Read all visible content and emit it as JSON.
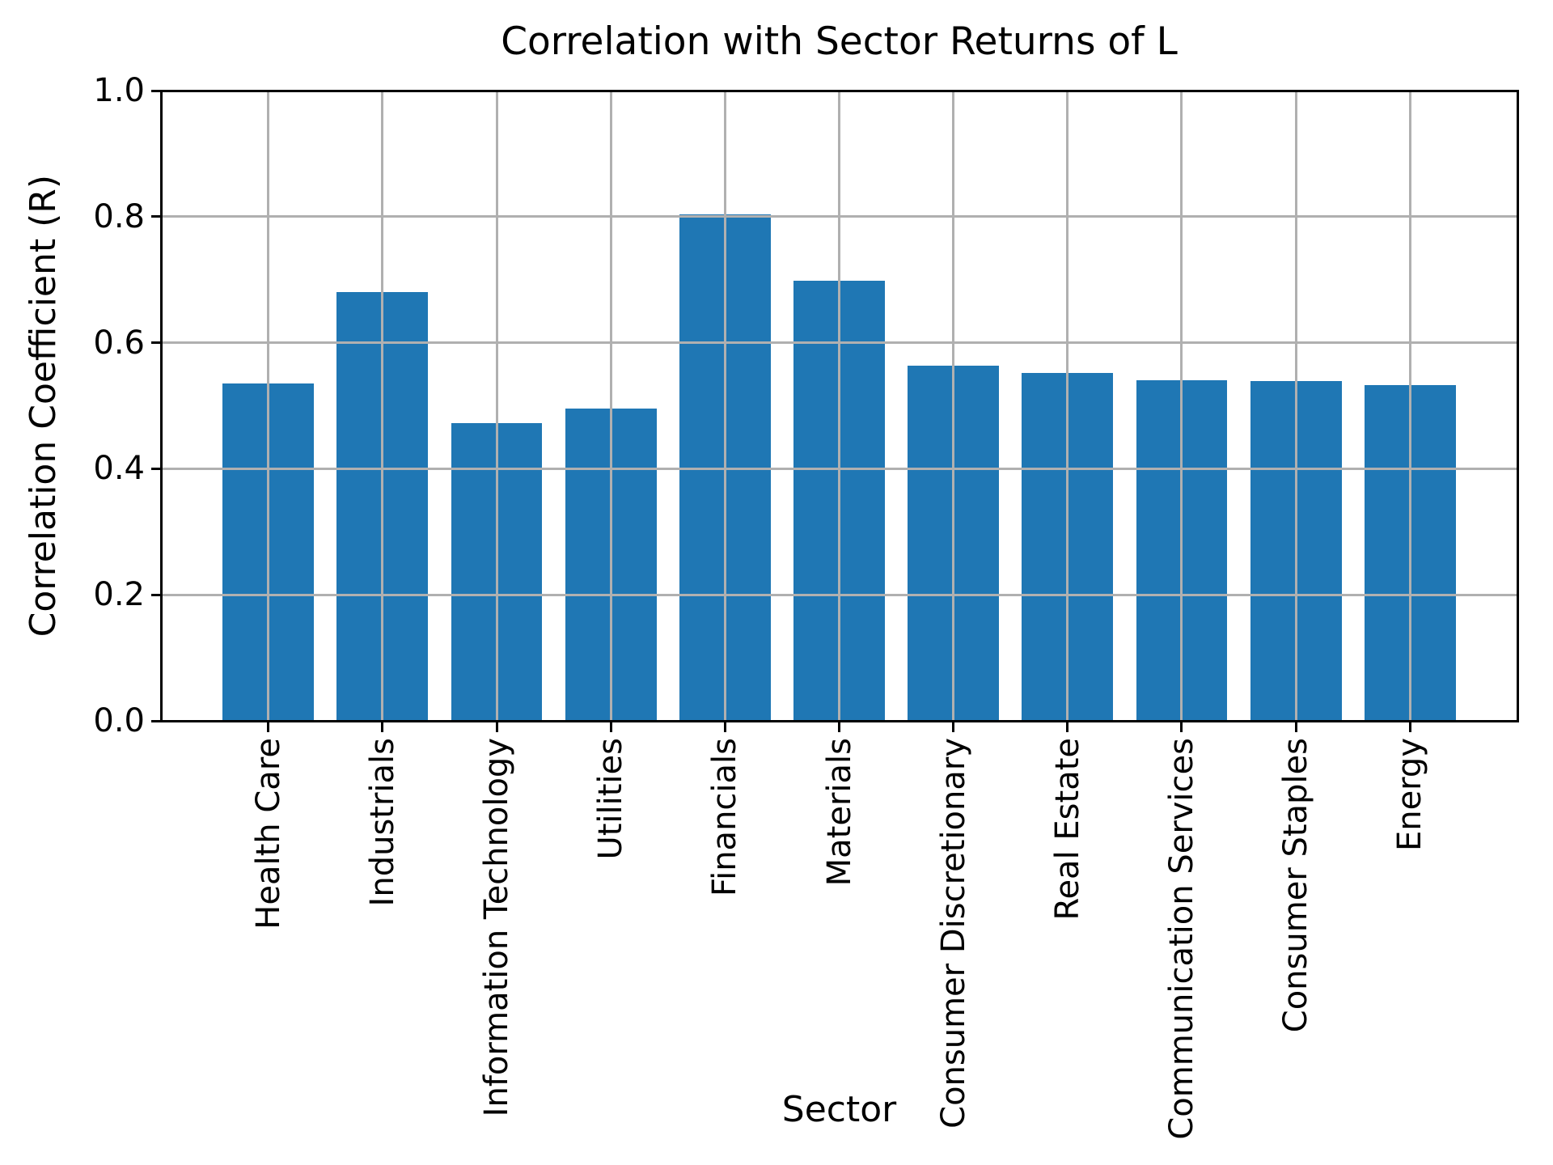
{
  "figure": {
    "background": "#ffffff"
  },
  "chart_data": {
    "type": "bar",
    "title": "Correlation with Sector Returns of L",
    "xlabel": "Sector",
    "ylabel": "Correlation Coefficient (R)",
    "categories": [
      "Health Care",
      "Industrials",
      "Information Technology",
      "Utilities",
      "Financials",
      "Materials",
      "Consumer Discretionary",
      "Real Estate",
      "Communication Services",
      "Consumer Staples",
      "Energy"
    ],
    "values": [
      0.535,
      0.68,
      0.472,
      0.496,
      0.803,
      0.698,
      0.563,
      0.552,
      0.54,
      0.539,
      0.533
    ],
    "ylim": [
      0.0,
      1.0
    ],
    "yticks": [
      0.0,
      0.2,
      0.4,
      0.6,
      0.8,
      1.0
    ],
    "grid": true,
    "grid_on_top_of_bars": true,
    "legend": "none",
    "x_tick_rotation_deg": 90,
    "bar_color": "#1f77b4",
    "grid_color": "#b0b0b0",
    "spine_color": "#000000"
  }
}
